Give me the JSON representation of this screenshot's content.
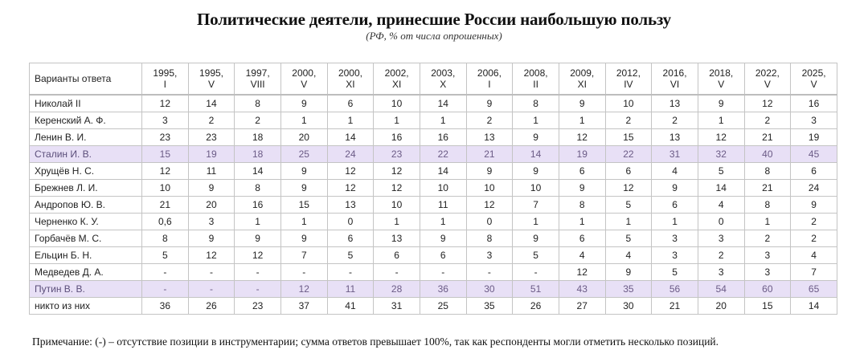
{
  "title": "Политические деятели, принесшие России наибольшую пользу",
  "subtitle": "(РФ, % от числа опрошенных)",
  "table": {
    "header_label": "Варианты ответа",
    "columns": [
      {
        "year": "1995,",
        "month": "I"
      },
      {
        "year": "1995,",
        "month": "V"
      },
      {
        "year": "1997,",
        "month": "VIII"
      },
      {
        "year": "2000,",
        "month": "V"
      },
      {
        "year": "2000,",
        "month": "XI"
      },
      {
        "year": "2002,",
        "month": "XI"
      },
      {
        "year": "2003,",
        "month": "X"
      },
      {
        "year": "2006,",
        "month": "I"
      },
      {
        "year": "2008,",
        "month": "II"
      },
      {
        "year": "2009,",
        "month": "XI"
      },
      {
        "year": "2012,",
        "month": "IV"
      },
      {
        "year": "2016,",
        "month": "VI"
      },
      {
        "year": "2018,",
        "month": "V"
      },
      {
        "year": "2022,",
        "month": "V"
      },
      {
        "year": "2025,",
        "month": "V"
      }
    ],
    "rows": [
      {
        "name": "Николай II",
        "highlight": false,
        "values": [
          "12",
          "14",
          "8",
          "9",
          "6",
          "10",
          "14",
          "9",
          "8",
          "9",
          "10",
          "13",
          "9",
          "12",
          "16"
        ]
      },
      {
        "name": "Керенский А. Ф.",
        "highlight": false,
        "values": [
          "3",
          "2",
          "2",
          "1",
          "1",
          "1",
          "1",
          "2",
          "1",
          "1",
          "2",
          "2",
          "1",
          "2",
          "3"
        ]
      },
      {
        "name": "Ленин В. И.",
        "highlight": false,
        "values": [
          "23",
          "23",
          "18",
          "20",
          "14",
          "16",
          "16",
          "13",
          "9",
          "12",
          "15",
          "13",
          "12",
          "21",
          "19"
        ]
      },
      {
        "name": "Сталин И. В.",
        "highlight": true,
        "values": [
          "15",
          "19",
          "18",
          "25",
          "24",
          "23",
          "22",
          "21",
          "14",
          "19",
          "22",
          "31",
          "32",
          "40",
          "45"
        ]
      },
      {
        "name": "Хрущёв Н. С.",
        "highlight": false,
        "values": [
          "12",
          "11",
          "14",
          "9",
          "12",
          "12",
          "14",
          "9",
          "9",
          "6",
          "6",
          "4",
          "5",
          "8",
          "6"
        ]
      },
      {
        "name": "Брежнев Л. И.",
        "highlight": false,
        "values": [
          "10",
          "9",
          "8",
          "9",
          "12",
          "12",
          "10",
          "10",
          "10",
          "9",
          "12",
          "9",
          "14",
          "21",
          "24"
        ]
      },
      {
        "name": "Андропов Ю. В.",
        "highlight": false,
        "values": [
          "21",
          "20",
          "16",
          "15",
          "13",
          "10",
          "11",
          "12",
          "7",
          "8",
          "5",
          "6",
          "4",
          "8",
          "9"
        ]
      },
      {
        "name": "Черненко К. У.",
        "highlight": false,
        "values": [
          "0,6",
          "3",
          "1",
          "1",
          "0",
          "1",
          "1",
          "0",
          "1",
          "1",
          "1",
          "1",
          "0",
          "1",
          "2"
        ]
      },
      {
        "name": "Горбачёв М. С.",
        "highlight": false,
        "values": [
          "8",
          "9",
          "9",
          "9",
          "6",
          "13",
          "9",
          "8",
          "9",
          "6",
          "5",
          "3",
          "3",
          "2",
          "2"
        ]
      },
      {
        "name": "Ельцин Б. Н.",
        "highlight": false,
        "values": [
          "5",
          "12",
          "12",
          "7",
          "5",
          "6",
          "6",
          "3",
          "5",
          "4",
          "4",
          "3",
          "2",
          "3",
          "4"
        ]
      },
      {
        "name": "Медведев Д. А.",
        "highlight": false,
        "values": [
          "-",
          "-",
          "-",
          "-",
          "-",
          "-",
          "-",
          "-",
          "-",
          "12",
          "9",
          "5",
          "3",
          "3",
          "7"
        ]
      },
      {
        "name": "Путин В. В.",
        "highlight": true,
        "values": [
          "-",
          "-",
          "-",
          "12",
          "11",
          "28",
          "36",
          "30",
          "51",
          "43",
          "35",
          "56",
          "54",
          "60",
          "65"
        ]
      },
      {
        "name": "никто из них",
        "highlight": false,
        "values": [
          "36",
          "26",
          "23",
          "37",
          "41",
          "31",
          "25",
          "35",
          "26",
          "27",
          "30",
          "21",
          "20",
          "15",
          "14"
        ]
      }
    ]
  },
  "note": "Примечание: (-) – отсутствие позиции в инструментарии; сумма ответов превышает 100%, так как респонденты могли отметить несколько позиций.",
  "colors": {
    "highlight_row_bg": "#e8e0f6",
    "highlight_row_text": "#6b5b86",
    "border": "#c4c4c4"
  }
}
